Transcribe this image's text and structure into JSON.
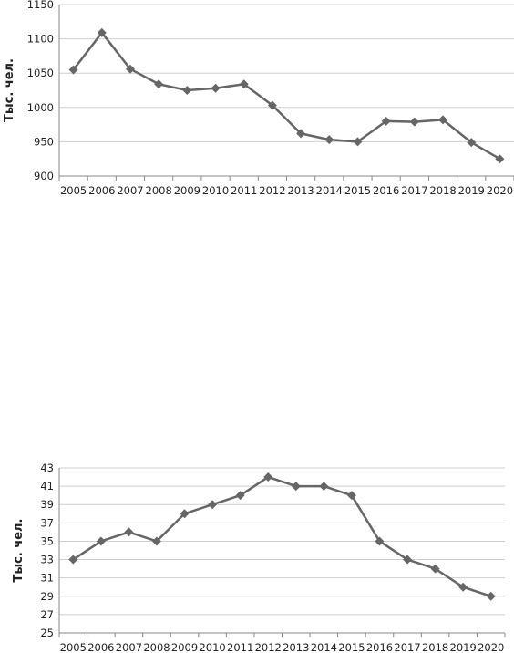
{
  "chart_data": [
    {
      "type": "line",
      "ylabel": "Тыс. чел.",
      "x": [
        "2005",
        "2006",
        "2007",
        "2008",
        "2009",
        "2010",
        "2011",
        "2012",
        "2013",
        "2014",
        "2015",
        "2016",
        "2017",
        "2018",
        "2019",
        "2020"
      ],
      "y": [
        1055,
        1109,
        1056,
        1034,
        1025,
        1028,
        1034,
        1003,
        962,
        953,
        950,
        980,
        979,
        982,
        949,
        925
      ],
      "yticks": [
        900,
        950,
        1000,
        1050,
        1100,
        1150
      ],
      "ylim": [
        900,
        1150
      ],
      "grid": true,
      "color": "#666666"
    },
    {
      "type": "line",
      "ylabel": "Тыс. чел.",
      "x": [
        "2005",
        "2006",
        "2007",
        "2008",
        "2009",
        "2010",
        "2011",
        "2012",
        "2013",
        "2014",
        "2015",
        "2016",
        "2017",
        "2018",
        "2019",
        "2020"
      ],
      "y": [
        33,
        35,
        36,
        35,
        38,
        39,
        40,
        42,
        41,
        41,
        40,
        35,
        33,
        32,
        30,
        29
      ],
      "yticks": [
        25,
        27,
        29,
        31,
        33,
        35,
        37,
        39,
        41,
        43
      ],
      "ylim": [
        25,
        43
      ],
      "grid": true,
      "color": "#666666"
    }
  ]
}
